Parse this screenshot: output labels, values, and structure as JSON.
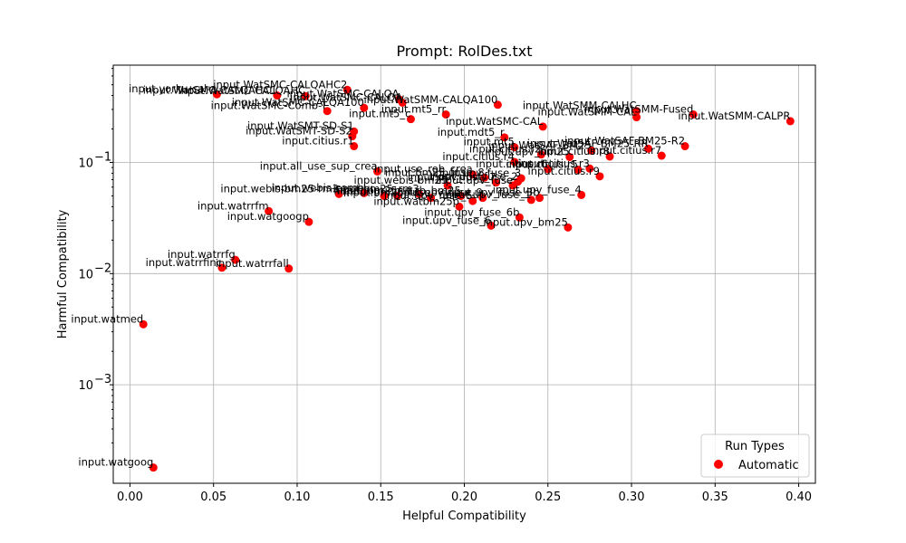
{
  "chart_data": {
    "type": "scatter",
    "title": "Prompt: RolDes.txt",
    "xlabel": "Helpful Compatibility",
    "ylabel": "Harmful Compatibility",
    "xlim": [
      -0.01,
      0.41
    ],
    "ylim": [
      0.00013,
      0.75
    ],
    "y_scale": "log",
    "grid": true,
    "x_ticks": [
      0.0,
      0.05,
      0.1,
      0.15,
      0.2,
      0.25,
      0.3,
      0.35,
      0.4
    ],
    "x_tick_labels": [
      "0.00",
      "0.05",
      "0.10",
      "0.15",
      "0.20",
      "0.25",
      "0.30",
      "0.35",
      "0.40"
    ],
    "y_ticks": [
      0.001,
      0.01,
      0.1
    ],
    "y_tick_labels": [
      "10",
      "10",
      "10"
    ],
    "y_tick_exponents": [
      "−3",
      "−2",
      "−1"
    ],
    "legend": {
      "title": "Run Types",
      "placement": "lower-right",
      "entries": [
        "Automatic"
      ]
    },
    "marker_color": "#ff0000",
    "series": [
      {
        "name": "Automatic",
        "points": [
          {
            "x": 0.014,
            "y": 0.00018,
            "label": "input.watgoog"
          },
          {
            "x": 0.008,
            "y": 0.0035,
            "label": "input.watmed"
          },
          {
            "x": 0.055,
            "y": 0.0113,
            "label": "input.watrrfinc"
          },
          {
            "x": 0.063,
            "y": 0.0133,
            "label": "input.watrrfg"
          },
          {
            "x": 0.095,
            "y": 0.0111,
            "label": "input.watrrfall"
          },
          {
            "x": 0.083,
            "y": 0.0365,
            "label": "input.watrrfm"
          },
          {
            "x": 0.107,
            "y": 0.0292,
            "label": "input.watgoogp"
          },
          {
            "x": 0.052,
            "y": 0.41,
            "label": "input.yorku-cal-a"
          },
          {
            "x": 0.088,
            "y": 0.4,
            "label": "input.WatSMC-CALQAHC1"
          },
          {
            "x": 0.105,
            "y": 0.395,
            "label": "input.WatSMC-CALQAHC"
          },
          {
            "x": 0.13,
            "y": 0.45,
            "label": "input.WatSMC-CALQAHC2"
          },
          {
            "x": 0.118,
            "y": 0.29,
            "label": "input.WatSMC-Comb-T"
          },
          {
            "x": 0.14,
            "y": 0.31,
            "label": "input.WatSMC-CALQA100"
          },
          {
            "x": 0.161,
            "y": 0.37,
            "label": "input.WatSMC-CALQA"
          },
          {
            "x": 0.163,
            "y": 0.345,
            "label": "input.WatSMC-CALQA"
          },
          {
            "x": 0.168,
            "y": 0.245,
            "label": "input.mt5_c"
          },
          {
            "x": 0.189,
            "y": 0.27,
            "label": "input.mt5_rr"
          },
          {
            "x": 0.22,
            "y": 0.33,
            "label": "input.WatSMM-CALQA100"
          },
          {
            "x": 0.247,
            "y": 0.21,
            "label": "input.WatSMC-CAL"
          },
          {
            "x": 0.303,
            "y": 0.29,
            "label": "input.WatSMM-CALHC"
          },
          {
            "x": 0.303,
            "y": 0.255,
            "label": "input.WatSMM-CAL"
          },
          {
            "x": 0.337,
            "y": 0.27,
            "label": "input.WatSMM-Fused"
          },
          {
            "x": 0.395,
            "y": 0.235,
            "label": "input.WatSMM-CALPR"
          },
          {
            "x": 0.134,
            "y": 0.19,
            "label": "input.WatSMT-SD-S1"
          },
          {
            "x": 0.133,
            "y": 0.172,
            "label": "input.WatSMT-SD-S2"
          },
          {
            "x": 0.134,
            "y": 0.14,
            "label": "input.citius.r1"
          },
          {
            "x": 0.224,
            "y": 0.168,
            "label": "input.mdt5_r"
          },
          {
            "x": 0.23,
            "y": 0.137,
            "label": "input.mt5"
          },
          {
            "x": 0.246,
            "y": 0.118,
            "label": "input.citius.r2"
          },
          {
            "x": 0.263,
            "y": 0.112,
            "label": "input.upv_bm25"
          },
          {
            "x": 0.276,
            "y": 0.128,
            "label": "input.WatSAF-BM25"
          },
          {
            "x": 0.287,
            "y": 0.113,
            "label": "input.citius.r8"
          },
          {
            "x": 0.31,
            "y": 0.133,
            "label": "input.WatSAF-BM25-RR"
          },
          {
            "x": 0.318,
            "y": 0.115,
            "label": "input.citius.r7"
          },
          {
            "x": 0.332,
            "y": 0.14,
            "label": "input.WatSAF-BM25-R2"
          },
          {
            "x": 0.23,
            "y": 0.101,
            "label": "input.citius.r4"
          },
          {
            "x": 0.25,
            "y": 0.087,
            "label": "input.citius.r6"
          },
          {
            "x": 0.268,
            "y": 0.086,
            "label": "input.citius.r5"
          },
          {
            "x": 0.275,
            "y": 0.088,
            "label": "input.citius.r3"
          },
          {
            "x": 0.281,
            "y": 0.075,
            "label": "input.citius.r9"
          },
          {
            "x": 0.148,
            "y": 0.083,
            "label": "input.all_use_sup_crea"
          },
          {
            "x": 0.205,
            "y": 0.078,
            "label": "input.use_rob_crea"
          },
          {
            "x": 0.212,
            "y": 0.073,
            "label": "input.bm25_fuse_8"
          },
          {
            "x": 0.219,
            "y": 0.066,
            "label": "input.upv_fuse_7"
          },
          {
            "x": 0.19,
            "y": 0.062,
            "label": "input.webis-bm25"
          },
          {
            "x": 0.229,
            "y": 0.062,
            "label": "input.upv_fuse"
          },
          {
            "x": 0.232,
            "y": 0.067,
            "label": "input.upv_fuse_2"
          },
          {
            "x": 0.234,
            "y": 0.072,
            "label": "input.upv_fuse_3"
          },
          {
            "x": 0.125,
            "y": 0.052,
            "label": "input.webis-bm25-rm3"
          },
          {
            "x": 0.14,
            "y": 0.053,
            "label": "input.webis-comb"
          },
          {
            "x": 0.152,
            "y": 0.05,
            "label": "input.hlgt"
          },
          {
            "x": 0.16,
            "y": 0.05,
            "label": "input.bm25"
          },
          {
            "x": 0.173,
            "y": 0.052,
            "label": "input.bm25_rm3"
          },
          {
            "x": 0.18,
            "y": 0.048,
            "label": "input.bm25_fuse"
          },
          {
            "x": 0.198,
            "y": 0.05,
            "label": "input.rb_bm25"
          },
          {
            "x": 0.205,
            "y": 0.045,
            "label": "input.upv_fuse_5"
          },
          {
            "x": 0.211,
            "y": 0.048,
            "label": "input.upv_fuse_9"
          },
          {
            "x": 0.24,
            "y": 0.046,
            "label": "input.upv_fuse_1"
          },
          {
            "x": 0.245,
            "y": 0.048,
            "label": "input.upv_fuse_3b"
          },
          {
            "x": 0.27,
            "y": 0.051,
            "label": "input.upv_fuse_4"
          },
          {
            "x": 0.197,
            "y": 0.04,
            "label": "input.watbm25p"
          },
          {
            "x": 0.216,
            "y": 0.027,
            "label": "input.upv_fuse_6"
          },
          {
            "x": 0.233,
            "y": 0.032,
            "label": "input.upv_fuse_6b"
          },
          {
            "x": 0.262,
            "y": 0.026,
            "label": "input.upv_bm25"
          }
        ]
      }
    ]
  }
}
